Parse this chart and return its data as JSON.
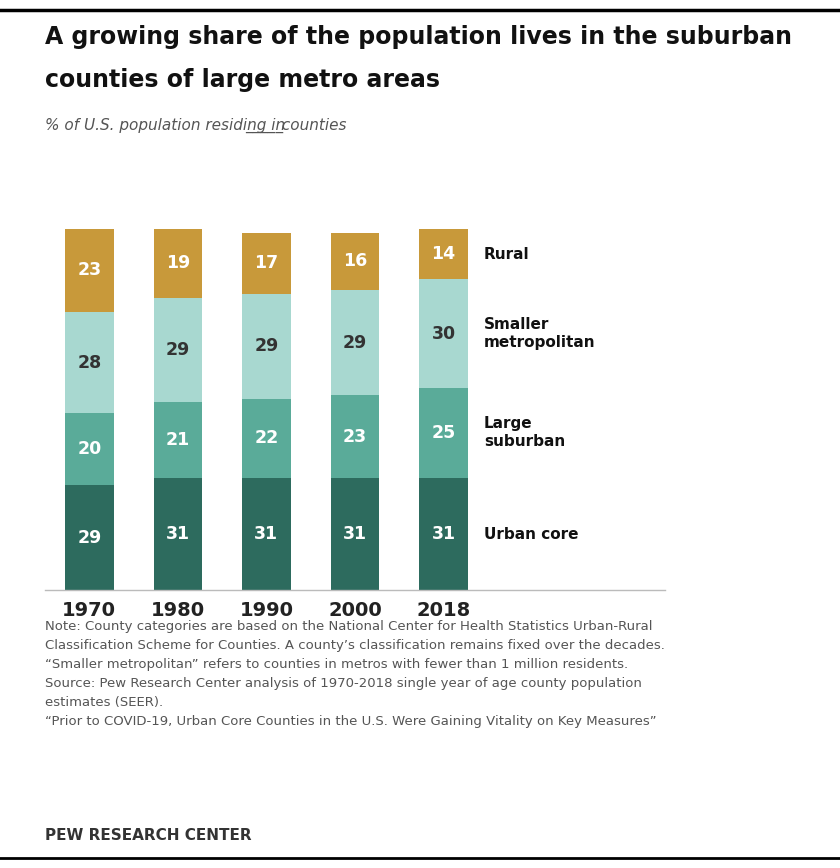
{
  "years": [
    "1970",
    "1980",
    "1990",
    "2000",
    "2018"
  ],
  "urban_core": [
    29,
    31,
    31,
    31,
    31
  ],
  "large_suburban": [
    20,
    21,
    22,
    23,
    25
  ],
  "smaller_metro": [
    28,
    29,
    29,
    29,
    30
  ],
  "rural": [
    23,
    19,
    17,
    16,
    14
  ],
  "colors": {
    "urban_core": "#2d6b5e",
    "large_suburban": "#5aab99",
    "smaller_metro": "#a8d8d0",
    "rural": "#c8993a"
  },
  "title_line1": "A growing share of the population lives in the suburban",
  "title_line2": "counties of large metro areas",
  "subtitle_prefix": "% of U.S. population residing in ",
  "subtitle_blank": "_____",
  "subtitle_suffix": " counties",
  "note_text": "Note: County categories are based on the National Center for Health Statistics Urban-Rural\nClassification Scheme for Counties. A county’s classification remains fixed over the decades.\n“Smaller metropolitan” refers to counties in metros with fewer than 1 million residents.\nSource: Pew Research Center analysis of 1970-2018 single year of age county population\nestimates (SEER).\n“Prior to COVID-19, Urban Core Counties in the U.S. Were Gaining Vitality on Key Measures”",
  "source_label": "PEW RESEARCH CENTER",
  "bar_width": 0.55,
  "background_color": "#ffffff",
  "legend_top": [
    "Rural",
    "Smaller\nmetropolitan",
    "Large\nsuburban",
    "Urban core"
  ]
}
